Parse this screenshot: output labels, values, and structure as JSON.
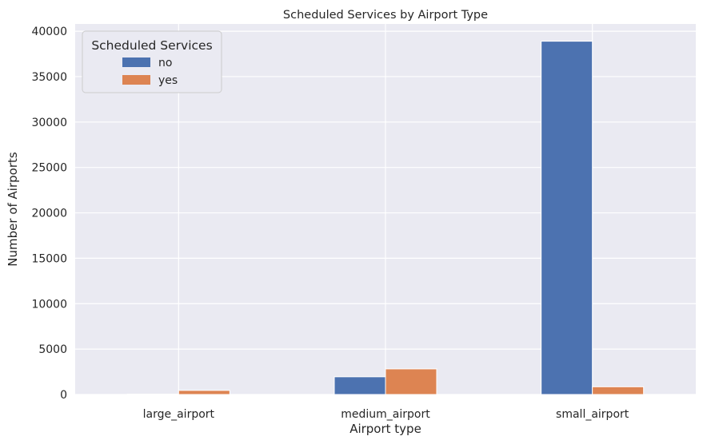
{
  "chart_data": {
    "type": "bar",
    "title": "Scheduled Services by Airport Type",
    "xlabel": "Airport type",
    "ylabel": "Number of Airports",
    "categories": [
      "large_airport",
      "medium_airport",
      "small_airport"
    ],
    "series": [
      {
        "name": "no",
        "color": "#4c72b0",
        "values": [
          35,
          1950,
          38900
        ]
      },
      {
        "name": "yes",
        "color": "#dd8452",
        "values": [
          450,
          2820,
          850
        ]
      }
    ],
    "ylim": [
      0,
      40800
    ],
    "yticks": [
      0,
      5000,
      10000,
      15000,
      20000,
      25000,
      30000,
      35000,
      40000
    ],
    "grid": true,
    "legend": {
      "title": "Scheduled Services",
      "placement": "top-left"
    },
    "colors": {
      "plot_background": "#eaeaf2",
      "grid": "#ffffff",
      "text": "#262626"
    }
  }
}
